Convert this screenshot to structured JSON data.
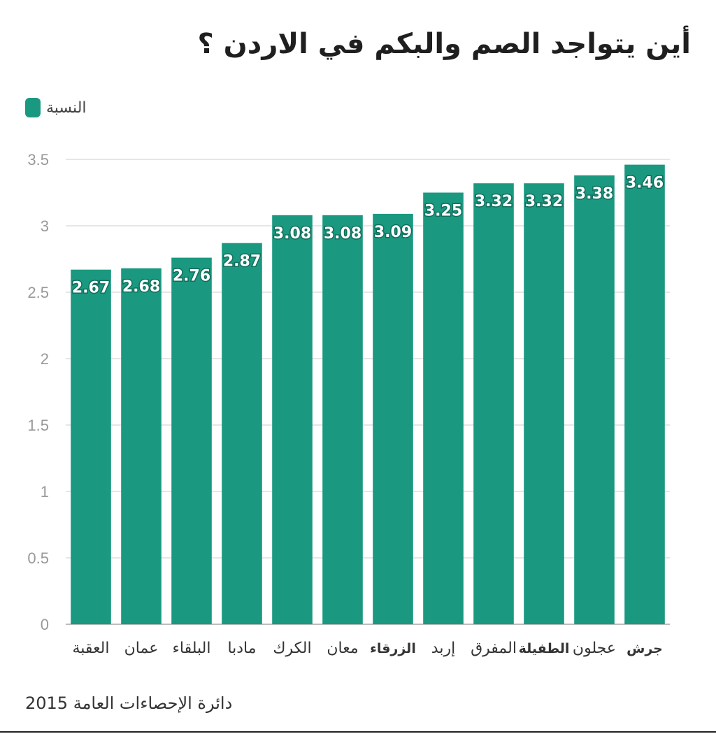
{
  "title": "أين يتواجد الصم والبكم في الاردن ؟",
  "legend": {
    "label": "النسبة",
    "color": "#1a9980"
  },
  "source": "دائرة الإحصاءات العامة 2015",
  "chart_data": {
    "type": "bar",
    "title": "أين يتواجد الصم والبكم في الاردن ؟",
    "categories": [
      "العقبة",
      "عمان",
      "البلقاء",
      "مادبا",
      "الكرك",
      "معان",
      "الزرقاء",
      "إربد",
      "المفرق",
      "الطفيلة",
      "عجلون",
      "جرش"
    ],
    "series": [
      {
        "name": "النسبة",
        "values": [
          2.67,
          2.68,
          2.76,
          2.87,
          3.08,
          3.08,
          3.09,
          3.25,
          3.32,
          3.32,
          3.38,
          3.46
        ]
      }
    ],
    "value_labels": [
      "2.67",
      "2.68",
      "2.76",
      "2.87",
      "3.08",
      "3.08",
      "3.09",
      "3.25",
      "3.32",
      "3.32",
      "3.38",
      "3.46"
    ],
    "y_ticks": [
      "0",
      "0.5",
      "1",
      "1.5",
      "2",
      "2.5",
      "3",
      "3.5"
    ],
    "ylim": [
      0,
      3.5
    ],
    "grid": true,
    "legend_position": "top-left",
    "bar_color": "#1a9980"
  }
}
